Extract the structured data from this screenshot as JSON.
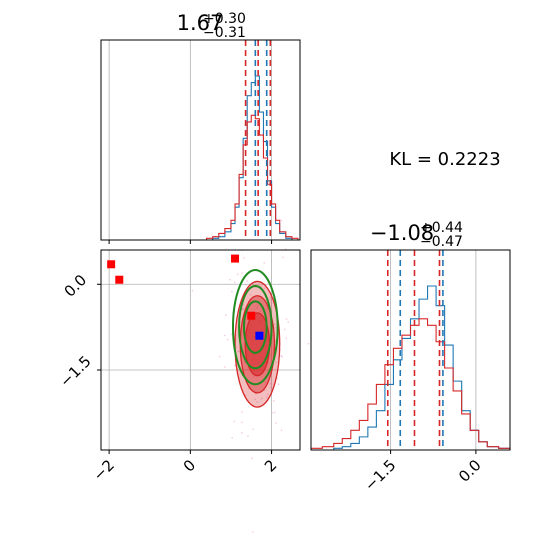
{
  "chart_data": [
    {
      "panel": "marginal-x",
      "type": "histogram",
      "title_value": "1.67",
      "title_plus": "+0.30",
      "title_minus": "−0.31",
      "xlim": [
        -2.2,
        2.7
      ],
      "bin_edges": [
        0.4,
        0.55,
        0.7,
        0.85,
        1.0,
        1.1,
        1.2,
        1.3,
        1.4,
        1.5,
        1.6,
        1.7,
        1.8,
        1.9,
        2.0,
        2.1,
        2.2,
        2.35,
        2.5,
        2.65
      ],
      "series": [
        {
          "name": "",
          "color": "#1f77b4",
          "counts": [
            0,
            1,
            2,
            5,
            10,
            20,
            38,
            62,
            88,
            96,
            100,
            78,
            60,
            36,
            20,
            10,
            4,
            1,
            0
          ]
        },
        {
          "name": "",
          "color": "#d62728",
          "counts": [
            1,
            2,
            4,
            7,
            12,
            22,
            40,
            58,
            72,
            76,
            74,
            64,
            50,
            34,
            22,
            12,
            5,
            2,
            1
          ]
        }
      ],
      "quantiles": [
        {
          "color": "#d62728",
          "values": [
            1.36,
            1.67,
            1.97
          ]
        },
        {
          "color": "#1f77b4",
          "values": [
            1.6,
            1.88
          ]
        }
      ]
    },
    {
      "panel": "joint",
      "type": "scatter",
      "xlim": [
        -2.2,
        2.7
      ],
      "ylim": [
        -2.9,
        0.6
      ],
      "xticks": [
        "−2",
        "0",
        "2"
      ],
      "xtick_values": [
        -2,
        0,
        2
      ],
      "yticks": [
        "0.0",
        "−1.5"
      ],
      "ytick_values": [
        0.0,
        -1.5
      ],
      "red_markers": [
        [
          -1.95,
          0.35
        ],
        [
          -1.75,
          0.08
        ],
        [
          1.1,
          0.45
        ],
        [
          1.5,
          -0.55
        ]
      ],
      "blue_marker": [
        1.7,
        -0.9
      ],
      "red_contours": {
        "center": [
          1.65,
          -1.05
        ],
        "rx": [
          0.55,
          0.42,
          0.3
        ],
        "ry": [
          1.1,
          0.85,
          0.55
        ]
      },
      "green_contours": {
        "center": [
          1.6,
          -0.75
        ],
        "rx": [
          0.55,
          0.4,
          0.28
        ],
        "ry": [
          1.0,
          0.72,
          0.45
        ]
      }
    },
    {
      "panel": "marginal-y",
      "type": "histogram",
      "title_value": "−1.08",
      "title_plus": "+0.44",
      "title_minus": "−0.47",
      "xlim": [
        -2.9,
        0.6
      ],
      "xticks": [
        "−1.5",
        "0.0"
      ],
      "xtick_values": [
        -1.5,
        0.0
      ],
      "bin_edges": [
        -2.9,
        -2.7,
        -2.5,
        -2.35,
        -2.2,
        -2.05,
        -1.9,
        -1.75,
        -1.6,
        -1.45,
        -1.3,
        -1.15,
        -1.0,
        -0.85,
        -0.7,
        -0.55,
        -0.4,
        -0.25,
        -0.1,
        0.05,
        0.2,
        0.4,
        0.6
      ],
      "series": [
        {
          "name": "",
          "color": "#1f77b4",
          "counts": [
            0,
            0,
            1,
            2,
            4,
            8,
            14,
            24,
            40,
            55,
            68,
            80,
            92,
            100,
            88,
            64,
            42,
            24,
            12,
            5,
            2,
            1
          ]
        },
        {
          "name": "",
          "color": "#d62728",
          "counts": [
            1,
            2,
            4,
            7,
            12,
            18,
            28,
            40,
            52,
            62,
            70,
            76,
            80,
            76,
            66,
            50,
            36,
            22,
            12,
            5,
            2,
            1
          ]
        }
      ],
      "quantiles": [
        {
          "color": "#d62728",
          "values": [
            -1.55,
            -1.08,
            -0.64
          ]
        },
        {
          "color": "#1f77b4",
          "values": [
            -1.33,
            -0.58
          ]
        }
      ]
    }
  ],
  "annotation": {
    "kl_text": "KL = 0.2223"
  }
}
